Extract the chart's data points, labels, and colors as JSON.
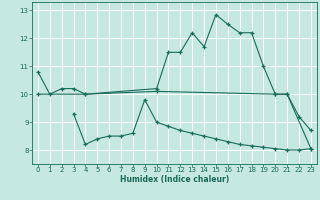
{
  "xlabel": "Humidex (Indice chaleur)",
  "bg_color": "#c5e8e0",
  "grid_color": "#ffffff",
  "line_color": "#1a6b5a",
  "xlim": [
    -0.5,
    23.5
  ],
  "ylim": [
    7.5,
    13.3
  ],
  "xticks": [
    0,
    1,
    2,
    3,
    4,
    5,
    6,
    7,
    8,
    9,
    10,
    11,
    12,
    13,
    14,
    15,
    16,
    17,
    18,
    19,
    20,
    21,
    22,
    23
  ],
  "yticks": [
    8,
    9,
    10,
    11,
    12,
    13
  ],
  "line1_x": [
    0,
    1,
    2,
    3,
    4,
    10,
    11,
    12,
    13,
    14,
    15,
    16,
    17,
    18,
    19,
    20,
    21,
    22,
    23
  ],
  "line1_y": [
    10.8,
    10.0,
    10.2,
    10.2,
    10.0,
    10.2,
    11.5,
    11.5,
    12.2,
    11.7,
    12.85,
    12.5,
    12.2,
    12.2,
    11.0,
    10.0,
    10.0,
    9.2,
    8.7
  ],
  "line2_x": [
    0,
    4,
    10,
    20,
    21,
    23
  ],
  "line2_y": [
    10.0,
    10.0,
    10.1,
    10.0,
    10.0,
    8.05
  ],
  "line3_x": [
    3,
    4,
    5,
    6,
    7,
    8,
    9,
    10,
    11,
    12,
    13,
    14,
    15,
    16,
    17,
    18,
    19,
    20,
    21,
    22,
    23
  ],
  "line3_y": [
    9.3,
    8.2,
    8.4,
    8.5,
    8.5,
    8.6,
    9.8,
    9.0,
    8.85,
    8.7,
    8.6,
    8.5,
    8.4,
    8.3,
    8.2,
    8.15,
    8.1,
    8.05,
    8.0,
    8.0,
    8.05
  ]
}
